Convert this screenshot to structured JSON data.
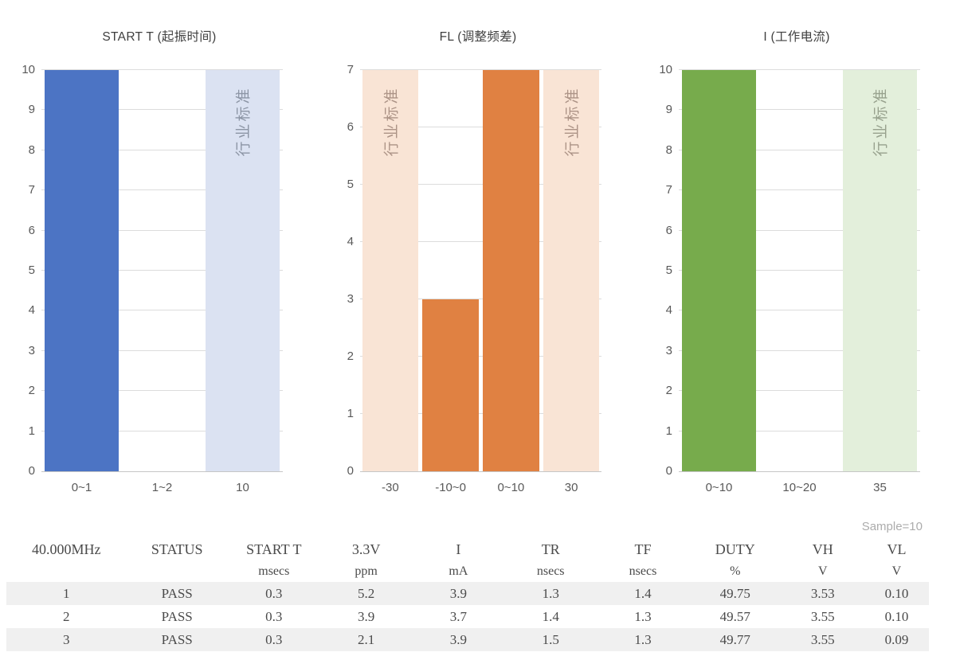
{
  "chart_data": [
    {
      "type": "bar",
      "title": "START T (起振时间)",
      "categories": [
        "0~1",
        "1~2",
        "10"
      ],
      "values": [
        10,
        0,
        10
      ],
      "bar_roles": [
        "measurement",
        "measurement",
        "industry-standard"
      ],
      "ylim": [
        0,
        10
      ],
      "ytick_interval": 1,
      "grid": true,
      "colors": {
        "measurement": "#4c74c4",
        "industry_standard": "#dbe2f2"
      },
      "standard_bar_label": "行业标准",
      "standard_label_color": "#8c95a5"
    },
    {
      "type": "bar",
      "title": "FL (调整频差)",
      "categories": [
        "-30",
        "-10~0",
        "0~10",
        "30"
      ],
      "values": [
        7,
        3,
        7,
        7
      ],
      "bar_roles": [
        "industry-standard",
        "measurement",
        "measurement",
        "industry-standard"
      ],
      "ylim": [
        0,
        7
      ],
      "ytick_interval": 1,
      "grid": true,
      "colors": {
        "measurement": "#e08142",
        "industry_standard": "#f9e4d5"
      },
      "standard_bar_label": "行业标准",
      "standard_label_color": "#ac9386"
    },
    {
      "type": "bar",
      "title": "I (工作电流)",
      "categories": [
        "0~10",
        "10~20",
        "35"
      ],
      "values": [
        10,
        0,
        10
      ],
      "bar_roles": [
        "measurement",
        "measurement",
        "industry-standard"
      ],
      "ylim": [
        0,
        10
      ],
      "ytick_interval": 1,
      "grid": true,
      "colors": {
        "measurement": "#77ab4c",
        "industry_standard": "#e3efdb"
      },
      "standard_bar_label": "行业标准",
      "standard_label_color": "#97a18d"
    }
  ],
  "table": {
    "note": "Sample=10",
    "columns": [
      {
        "label": "40.000MHz",
        "unit": ""
      },
      {
        "label": "STATUS",
        "unit": ""
      },
      {
        "label": "START T",
        "unit": "msecs"
      },
      {
        "label": "3.3V",
        "unit": "ppm"
      },
      {
        "label": "I",
        "unit": "mA"
      },
      {
        "label": "TR",
        "unit": "nsecs"
      },
      {
        "label": "TF",
        "unit": "nsecs"
      },
      {
        "label": "DUTY",
        "unit": "%"
      },
      {
        "label": "VH",
        "unit": "V"
      },
      {
        "label": "VL",
        "unit": "V"
      }
    ],
    "rows": [
      [
        "1",
        "PASS",
        "0.3",
        "5.2",
        "3.9",
        "1.3",
        "1.4",
        "49.75",
        "3.53",
        "0.10"
      ],
      [
        "2",
        "PASS",
        "0.3",
        "3.9",
        "3.7",
        "1.4",
        "1.3",
        "49.57",
        "3.55",
        "0.10"
      ],
      [
        "3",
        "PASS",
        "0.3",
        "2.1",
        "3.9",
        "1.5",
        "1.3",
        "49.77",
        "3.55",
        "0.09"
      ]
    ]
  }
}
